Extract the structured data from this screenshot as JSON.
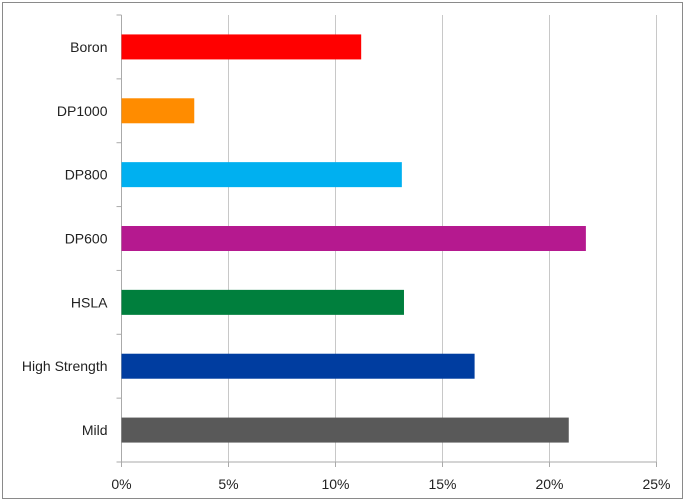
{
  "chart_data": {
    "type": "bar",
    "orientation": "horizontal",
    "title": "",
    "xlabel": "",
    "ylabel": "",
    "categories": [
      "Boron",
      "DP1000",
      "DP800",
      "DP600",
      "HSLA",
      "High Strength",
      "Mild"
    ],
    "values": [
      11.2,
      3.4,
      13.1,
      21.7,
      13.2,
      16.5,
      20.9
    ],
    "colors": [
      "#ff0000",
      "#ff8c00",
      "#00b0f0",
      "#b5198f",
      "#007f3d",
      "#003da0",
      "#595959"
    ],
    "xlim": [
      0,
      25
    ],
    "xticks": [
      0,
      5,
      10,
      15,
      20,
      25
    ],
    "xtick_labels": [
      "0%",
      "5%",
      "10%",
      "15%",
      "20%",
      "25%"
    ],
    "grid": "vertical",
    "legend": "none"
  }
}
